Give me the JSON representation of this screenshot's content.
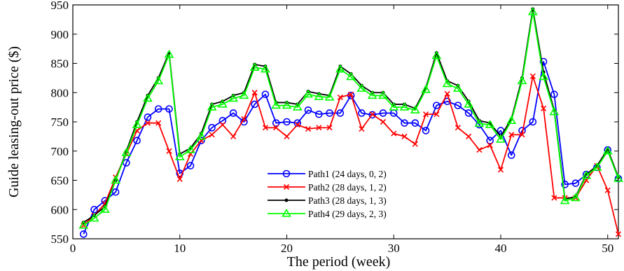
{
  "chart_data": {
    "type": "line",
    "title": "",
    "xlabel": "The period (week)",
    "ylabel": "Guide leasing-out price ($)",
    "xlim": [
      0,
      51
    ],
    "ylim": [
      550,
      950
    ],
    "xticks": [
      0,
      10,
      20,
      30,
      40,
      50
    ],
    "yticks": [
      550,
      600,
      650,
      700,
      750,
      800,
      850,
      900,
      950
    ],
    "grid": false,
    "legend_position": "center",
    "x": [
      1,
      2,
      3,
      4,
      5,
      6,
      7,
      8,
      9,
      10,
      11,
      12,
      13,
      14,
      15,
      16,
      17,
      18,
      19,
      20,
      21,
      22,
      23,
      24,
      25,
      26,
      27,
      28,
      29,
      30,
      31,
      32,
      33,
      34,
      35,
      36,
      37,
      38,
      39,
      40,
      41,
      42,
      43,
      44,
      45,
      46,
      47,
      48,
      49,
      50,
      51
    ],
    "series": [
      {
        "name": "Path1 (24 days, 0, 2)",
        "color": "#0000ff",
        "marker": "circle",
        "values": [
          558,
          600,
          615,
          630,
          680,
          718,
          758,
          772,
          772,
          662,
          675,
          718,
          740,
          752,
          765,
          750,
          780,
          797,
          748,
          750,
          748,
          770,
          763,
          765,
          765,
          795,
          765,
          762,
          765,
          765,
          748,
          748,
          735,
          778,
          785,
          778,
          765,
          745,
          718,
          735,
          693,
          735,
          750,
          853,
          797,
          643,
          645,
          660,
          672,
          702,
          653
        ]
      },
      {
        "name": "Path2 (28 days, 1, 2)",
        "color": "#ff0000",
        "marker": "x",
        "values": [
          573,
          590,
          610,
          655,
          695,
          735,
          748,
          748,
          700,
          652,
          695,
          718,
          728,
          745,
          725,
          755,
          800,
          740,
          740,
          725,
          745,
          738,
          740,
          740,
          792,
          797,
          738,
          763,
          750,
          730,
          725,
          712,
          763,
          763,
          798,
          740,
          725,
          702,
          710,
          668,
          728,
          728,
          828,
          773,
          620,
          620,
          620,
          650,
          675,
          633,
          558
        ]
      },
      {
        "name": "Path3 (28 days, 1, 3)",
        "color": "#000000",
        "marker": "dot",
        "values": [
          578,
          590,
          605,
          650,
          700,
          750,
          795,
          825,
          868,
          695,
          705,
          730,
          780,
          785,
          795,
          800,
          848,
          845,
          783,
          783,
          780,
          802,
          798,
          795,
          845,
          832,
          812,
          800,
          800,
          780,
          780,
          773,
          808,
          868,
          820,
          812,
          785,
          752,
          748,
          725,
          755,
          825,
          943,
          835,
          770,
          618,
          622,
          660,
          675,
          703,
          655
        ]
      },
      {
        "name": "Path4 (29 days, 2, 3)",
        "color": "#00ff00",
        "marker": "triangle",
        "values": [
          573,
          585,
          600,
          650,
          697,
          745,
          790,
          820,
          865,
          690,
          702,
          725,
          775,
          780,
          790,
          795,
          843,
          840,
          778,
          778,
          775,
          797,
          793,
          792,
          840,
          827,
          807,
          795,
          795,
          775,
          775,
          770,
          805,
          863,
          815,
          807,
          780,
          747,
          745,
          720,
          752,
          820,
          938,
          827,
          767,
          615,
          620,
          658,
          672,
          700,
          653
        ]
      }
    ]
  }
}
